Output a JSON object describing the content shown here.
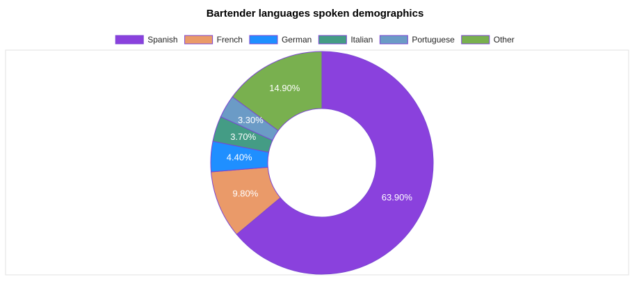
{
  "chart_data": {
    "type": "doughnut",
    "title": "Bartender languages spoken demographics",
    "categories": [
      "Spanish",
      "French",
      "German",
      "Italian",
      "Portuguese",
      "Other"
    ],
    "values": [
      63.9,
      9.8,
      4.4,
      3.7,
      3.3,
      14.9
    ],
    "value_labels": [
      "63.90%",
      "9.80%",
      "4.40%",
      "3.70%",
      "3.30%",
      "14.90%"
    ],
    "colors": [
      "#8a41dd",
      "#ea9a69",
      "#1f8fff",
      "#449c85",
      "#6b9bc6",
      "#79b04f"
    ],
    "legend": "top"
  }
}
